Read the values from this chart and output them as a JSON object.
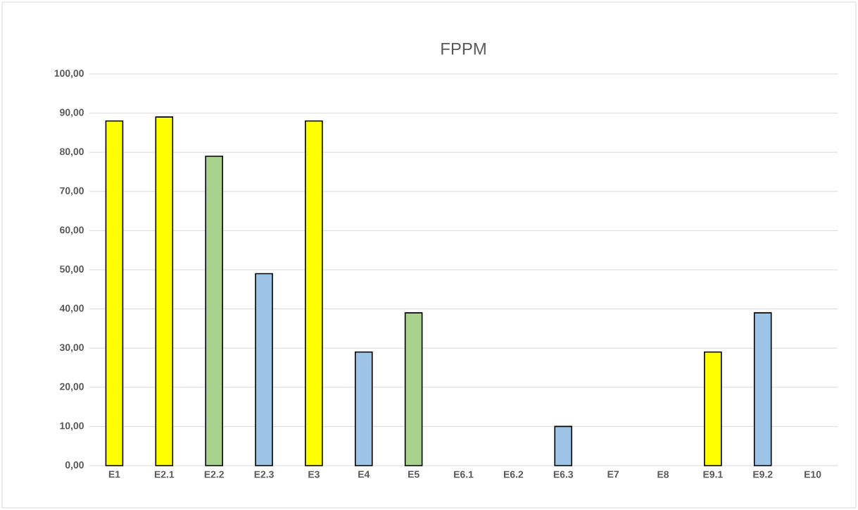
{
  "chart_data": {
    "type": "bar",
    "title": "FPPM",
    "categories": [
      "E1",
      "E2.1",
      "E2.2",
      "E2.3",
      "E3",
      "E4",
      "E5",
      "E6.1",
      "E6.2",
      "E6.3",
      "E7",
      "E8",
      "E9.1",
      "E9.2",
      "E10"
    ],
    "values": [
      88,
      89,
      79,
      49,
      88,
      29,
      39,
      null,
      null,
      10,
      null,
      null,
      29,
      39,
      null
    ],
    "colors": [
      "#ffff00",
      "#ffff00",
      "#a9d18e",
      "#9dc3e6",
      "#ffff00",
      "#9dc3e6",
      "#a9d18e",
      "#9dc3e6",
      "#9dc3e6",
      "#9dc3e6",
      "#9dc3e6",
      "#9dc3e6",
      "#ffff00",
      "#9dc3e6",
      "#9dc3e6"
    ],
    "ylim": [
      0,
      100
    ],
    "yticks": [
      {
        "value": 0,
        "label": "0,00"
      },
      {
        "value": 10,
        "label": "10,00"
      },
      {
        "value": 20,
        "label": "20,00"
      },
      {
        "value": 30,
        "label": "30,00"
      },
      {
        "value": 40,
        "label": "40,00"
      },
      {
        "value": 50,
        "label": "50,00"
      },
      {
        "value": 60,
        "label": "60,00"
      },
      {
        "value": 70,
        "label": "70,00"
      },
      {
        "value": 80,
        "label": "80,00"
      },
      {
        "value": 90,
        "label": "90,00"
      },
      {
        "value": 100,
        "label": "100,00"
      }
    ],
    "grid": "y"
  }
}
